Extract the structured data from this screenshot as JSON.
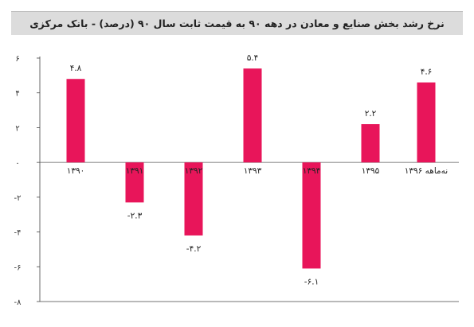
{
  "chart_data": {
    "type": "bar",
    "title": "نرخ رشد بخش صنایع و معادن در دهه ۹۰ به قیمت ثابت سال ۹۰ (درصد) - بانک مرکزی",
    "categories": [
      "۱۳۹۰",
      "۱۳۹۱",
      "۱۳۹۲",
      "۱۳۹۳",
      "۱۳۹۴",
      "۱۳۹۵",
      "نه‌ماهه ۱۳۹۶"
    ],
    "values": [
      4.8,
      -2.3,
      -4.2,
      5.4,
      -6.1,
      2.2,
      4.6
    ],
    "value_labels": [
      "۴.۸",
      "-۲.۳",
      "-۴.۲",
      "۵.۴",
      "-۶.۱",
      "۲.۲",
      "۴.۶"
    ],
    "yticks": [
      6,
      4,
      2,
      0,
      -2,
      -4,
      -6,
      -8
    ],
    "ytick_labels": [
      "۶",
      "۴",
      "۲",
      "۰",
      "-۲",
      "-۴",
      "-۶",
      "-۸"
    ],
    "ylim": [
      -8,
      6
    ],
    "bar_color": "#e8155a",
    "grid": false
  }
}
